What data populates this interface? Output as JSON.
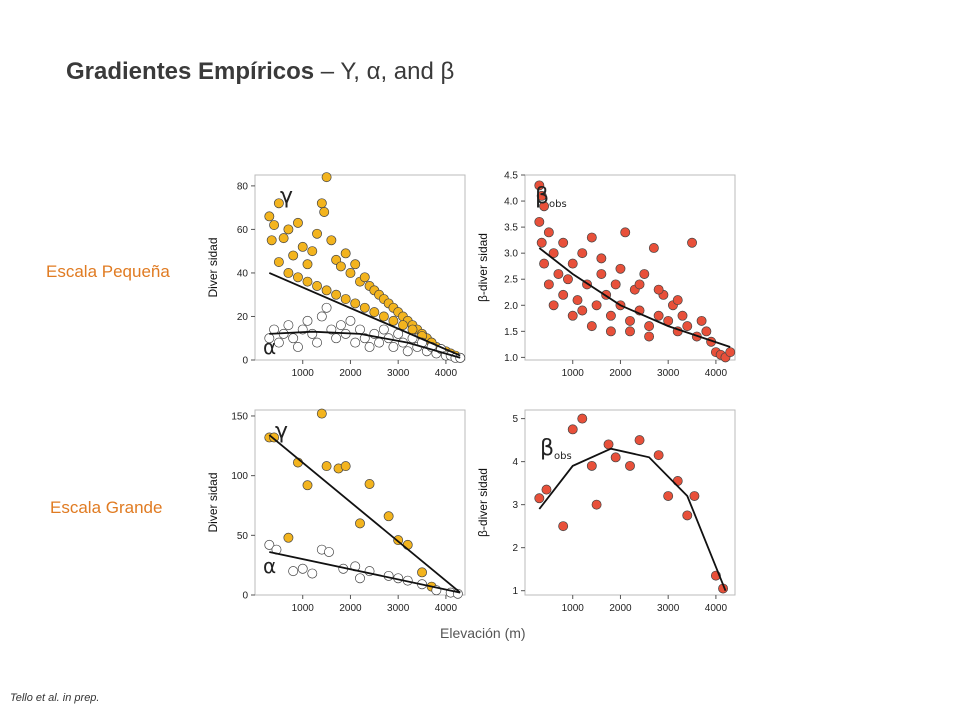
{
  "page": {
    "title_bold": "Gradientes Empíricos",
    "title_rest": " – Y, α, and β",
    "row_small": "Escala Pequeña",
    "row_large": "Escala Grande",
    "xlabel": "Elevación (m)",
    "citation": "Tello et al. in prep."
  },
  "colors": {
    "gamma": "#f3b41e",
    "alpha": "#ffffff",
    "beta": "#e8503a",
    "label_orange": "#e07b22"
  },
  "chart_data": [
    {
      "type": "scatter",
      "panel": "small-diversity",
      "ylabel": "Diver sidad",
      "xlim": [
        0,
        4400
      ],
      "ylim": [
        0,
        85
      ],
      "xticks": [
        1000,
        2000,
        3000,
        4000
      ],
      "yticks": [
        0,
        20,
        40,
        60,
        80
      ],
      "annotations": [
        "γ",
        "α"
      ],
      "series": [
        {
          "name": "γ",
          "color": "#f3b41e",
          "points": [
            [
              300,
              66
            ],
            [
              400,
              62
            ],
            [
              350,
              55
            ],
            [
              500,
              72
            ],
            [
              600,
              56
            ],
            [
              700,
              60
            ],
            [
              800,
              48
            ],
            [
              900,
              63
            ],
            [
              1000,
              52
            ],
            [
              1100,
              44
            ],
            [
              1200,
              50
            ],
            [
              1300,
              58
            ],
            [
              1400,
              72
            ],
            [
              1500,
              84
            ],
            [
              1450,
              68
            ],
            [
              1600,
              55
            ],
            [
              1700,
              46
            ],
            [
              1800,
              43
            ],
            [
              1900,
              49
            ],
            [
              2000,
              40
            ],
            [
              2100,
              44
            ],
            [
              2200,
              36
            ],
            [
              2300,
              38
            ],
            [
              2400,
              34
            ],
            [
              2500,
              32
            ],
            [
              2600,
              30
            ],
            [
              2700,
              28
            ],
            [
              2800,
              26
            ],
            [
              2900,
              24
            ],
            [
              3000,
              22
            ],
            [
              3100,
              20
            ],
            [
              3200,
              18
            ],
            [
              3300,
              16
            ],
            [
              3400,
              14
            ],
            [
              3500,
              12
            ],
            [
              3600,
              10
            ],
            [
              3700,
              8
            ],
            [
              3800,
              6
            ],
            [
              3900,
              5
            ],
            [
              4000,
              4
            ],
            [
              4100,
              3
            ],
            [
              4200,
              2
            ],
            [
              4300,
              1
            ],
            [
              500,
              45
            ],
            [
              700,
              40
            ],
            [
              900,
              38
            ],
            [
              1100,
              36
            ],
            [
              1300,
              34
            ],
            [
              1500,
              32
            ],
            [
              1700,
              30
            ],
            [
              1900,
              28
            ],
            [
              2100,
              26
            ],
            [
              2300,
              24
            ],
            [
              2500,
              22
            ],
            [
              2700,
              20
            ],
            [
              2900,
              18
            ],
            [
              3100,
              16
            ],
            [
              3300,
              14
            ],
            [
              3500,
              11
            ],
            [
              3700,
              8
            ]
          ],
          "fit": [
            [
              300,
              40
            ],
            [
              4300,
              2
            ]
          ]
        },
        {
          "name": "α",
          "color": "#ffffff",
          "points": [
            [
              300,
              10
            ],
            [
              400,
              14
            ],
            [
              500,
              8
            ],
            [
              600,
              12
            ],
            [
              700,
              16
            ],
            [
              800,
              10
            ],
            [
              900,
              6
            ],
            [
              1000,
              14
            ],
            [
              1100,
              18
            ],
            [
              1200,
              12
            ],
            [
              1300,
              8
            ],
            [
              1400,
              20
            ],
            [
              1500,
              24
            ],
            [
              1600,
              14
            ],
            [
              1700,
              10
            ],
            [
              1800,
              16
            ],
            [
              1900,
              12
            ],
            [
              2000,
              18
            ],
            [
              2100,
              8
            ],
            [
              2200,
              14
            ],
            [
              2300,
              10
            ],
            [
              2400,
              6
            ],
            [
              2500,
              12
            ],
            [
              2600,
              8
            ],
            [
              2700,
              14
            ],
            [
              2800,
              10
            ],
            [
              2900,
              6
            ],
            [
              3000,
              12
            ],
            [
              3100,
              8
            ],
            [
              3200,
              4
            ],
            [
              3300,
              10
            ],
            [
              3400,
              6
            ],
            [
              3500,
              8
            ],
            [
              3600,
              4
            ],
            [
              3700,
              6
            ],
            [
              3800,
              3
            ],
            [
              3900,
              5
            ],
            [
              4000,
              2
            ],
            [
              4100,
              2
            ],
            [
              4200,
              1
            ],
            [
              4300,
              1
            ]
          ],
          "fit": [
            [
              300,
              12
            ],
            [
              1200,
              13
            ],
            [
              2200,
              12
            ],
            [
              3200,
              8
            ],
            [
              4300,
              1
            ]
          ]
        }
      ]
    },
    {
      "type": "scatter",
      "panel": "small-beta",
      "ylabel": "β-diver sidad",
      "xlim": [
        0,
        4400
      ],
      "ylim": [
        0.95,
        4.5
      ],
      "xticks": [
        1000,
        2000,
        3000,
        4000
      ],
      "yticks": [
        1.0,
        1.5,
        2.0,
        2.5,
        3.0,
        3.5,
        4.0,
        4.5
      ],
      "annotations": [
        "βobs"
      ],
      "series": [
        {
          "name": "βobs",
          "color": "#e8503a",
          "points": [
            [
              300,
              4.3
            ],
            [
              350,
              4.1
            ],
            [
              400,
              3.9
            ],
            [
              300,
              3.6
            ],
            [
              500,
              3.4
            ],
            [
              350,
              3.2
            ],
            [
              600,
              3.0
            ],
            [
              400,
              2.8
            ],
            [
              700,
              2.6
            ],
            [
              500,
              2.4
            ],
            [
              800,
              2.2
            ],
            [
              900,
              2.5
            ],
            [
              1000,
              2.8
            ],
            [
              1100,
              2.1
            ],
            [
              1200,
              1.9
            ],
            [
              1300,
              2.4
            ],
            [
              1400,
              3.3
            ],
            [
              1500,
              2.0
            ],
            [
              1600,
              2.6
            ],
            [
              1700,
              2.2
            ],
            [
              1800,
              1.8
            ],
            [
              1900,
              2.4
            ],
            [
              2000,
              2.0
            ],
            [
              2100,
              3.4
            ],
            [
              2200,
              1.7
            ],
            [
              2300,
              2.3
            ],
            [
              2400,
              1.9
            ],
            [
              2500,
              2.6
            ],
            [
              2600,
              1.6
            ],
            [
              2700,
              3.1
            ],
            [
              2800,
              1.8
            ],
            [
              2900,
              2.2
            ],
            [
              3000,
              1.7
            ],
            [
              3100,
              2.0
            ],
            [
              3200,
              1.5
            ],
            [
              3300,
              1.8
            ],
            [
              3400,
              1.6
            ],
            [
              3500,
              3.2
            ],
            [
              3600,
              1.4
            ],
            [
              3700,
              1.7
            ],
            [
              3800,
              1.5
            ],
            [
              3900,
              1.3
            ],
            [
              4000,
              1.1
            ],
            [
              4100,
              1.05
            ],
            [
              4200,
              1.0
            ],
            [
              4300,
              1.1
            ],
            [
              800,
              3.2
            ],
            [
              1200,
              3.0
            ],
            [
              1600,
              2.9
            ],
            [
              2000,
              2.7
            ],
            [
              2400,
              2.4
            ],
            [
              2800,
              2.3
            ],
            [
              3200,
              2.1
            ],
            [
              600,
              2.0
            ],
            [
              1000,
              1.8
            ],
            [
              1400,
              1.6
            ],
            [
              1800,
              1.5
            ],
            [
              2200,
              1.5
            ],
            [
              2600,
              1.4
            ]
          ],
          "fit": [
            [
              300,
              3.1
            ],
            [
              1000,
              2.6
            ],
            [
              2000,
              2.0
            ],
            [
              3000,
              1.6
            ],
            [
              4300,
              1.2
            ]
          ]
        }
      ]
    },
    {
      "type": "scatter",
      "panel": "large-diversity",
      "ylabel": "Diver sidad",
      "xlim": [
        0,
        4400
      ],
      "ylim": [
        0,
        155
      ],
      "xticks": [
        1000,
        2000,
        3000,
        4000
      ],
      "yticks": [
        0,
        50,
        100,
        150
      ],
      "annotations": [
        "γ",
        "α"
      ],
      "series": [
        {
          "name": "γ",
          "color": "#f3b41e",
          "points": [
            [
              300,
              132
            ],
            [
              400,
              132
            ],
            [
              700,
              48
            ],
            [
              900,
              111
            ],
            [
              1100,
              92
            ],
            [
              1400,
              152
            ],
            [
              1500,
              108
            ],
            [
              1750,
              106
            ],
            [
              1900,
              108
            ],
            [
              2200,
              60
            ],
            [
              2400,
              93
            ],
            [
              2800,
              66
            ],
            [
              3000,
              46
            ],
            [
              3200,
              42
            ],
            [
              3500,
              19
            ],
            [
              3700,
              7
            ]
          ],
          "fit": [
            [
              300,
              134
            ],
            [
              4300,
              2
            ]
          ]
        },
        {
          "name": "α",
          "color": "#ffffff",
          "points": [
            [
              300,
              42
            ],
            [
              450,
              38
            ],
            [
              800,
              20
            ],
            [
              1000,
              22
            ],
            [
              1200,
              18
            ],
            [
              1400,
              38
            ],
            [
              1550,
              36
            ],
            [
              1850,
              22
            ],
            [
              2100,
              24
            ],
            [
              2200,
              14
            ],
            [
              2400,
              20
            ],
            [
              2800,
              16
            ],
            [
              3000,
              14
            ],
            [
              3200,
              12
            ],
            [
              3500,
              9
            ],
            [
              3800,
              4
            ],
            [
              4100,
              2
            ],
            [
              4250,
              1
            ]
          ],
          "fit": [
            [
              300,
              36
            ],
            [
              4300,
              2
            ]
          ]
        }
      ]
    },
    {
      "type": "scatter",
      "panel": "large-beta",
      "ylabel": "β-diver sidad",
      "xlim": [
        0,
        4400
      ],
      "ylim": [
        0.9,
        5.2
      ],
      "xticks": [
        1000,
        2000,
        3000,
        4000
      ],
      "yticks": [
        1,
        2,
        3,
        4,
        5
      ],
      "annotations": [
        "βobs"
      ],
      "series": [
        {
          "name": "βobs",
          "color": "#e8503a",
          "points": [
            [
              300,
              3.15
            ],
            [
              450,
              3.35
            ],
            [
              800,
              2.5
            ],
            [
              1000,
              4.75
            ],
            [
              1200,
              5.0
            ],
            [
              1400,
              3.9
            ],
            [
              1500,
              3.0
            ],
            [
              1750,
              4.4
            ],
            [
              1900,
              4.1
            ],
            [
              2200,
              3.9
            ],
            [
              2400,
              4.5
            ],
            [
              2800,
              4.15
            ],
            [
              3000,
              3.2
            ],
            [
              3200,
              3.55
            ],
            [
              3400,
              2.75
            ],
            [
              3550,
              3.2
            ],
            [
              4000,
              1.35
            ],
            [
              4150,
              1.05
            ]
          ],
          "fit": [
            [
              300,
              2.9
            ],
            [
              1000,
              3.9
            ],
            [
              1800,
              4.3
            ],
            [
              2600,
              4.1
            ],
            [
              3400,
              3.2
            ],
            [
              4200,
              1.0
            ]
          ]
        }
      ]
    }
  ]
}
